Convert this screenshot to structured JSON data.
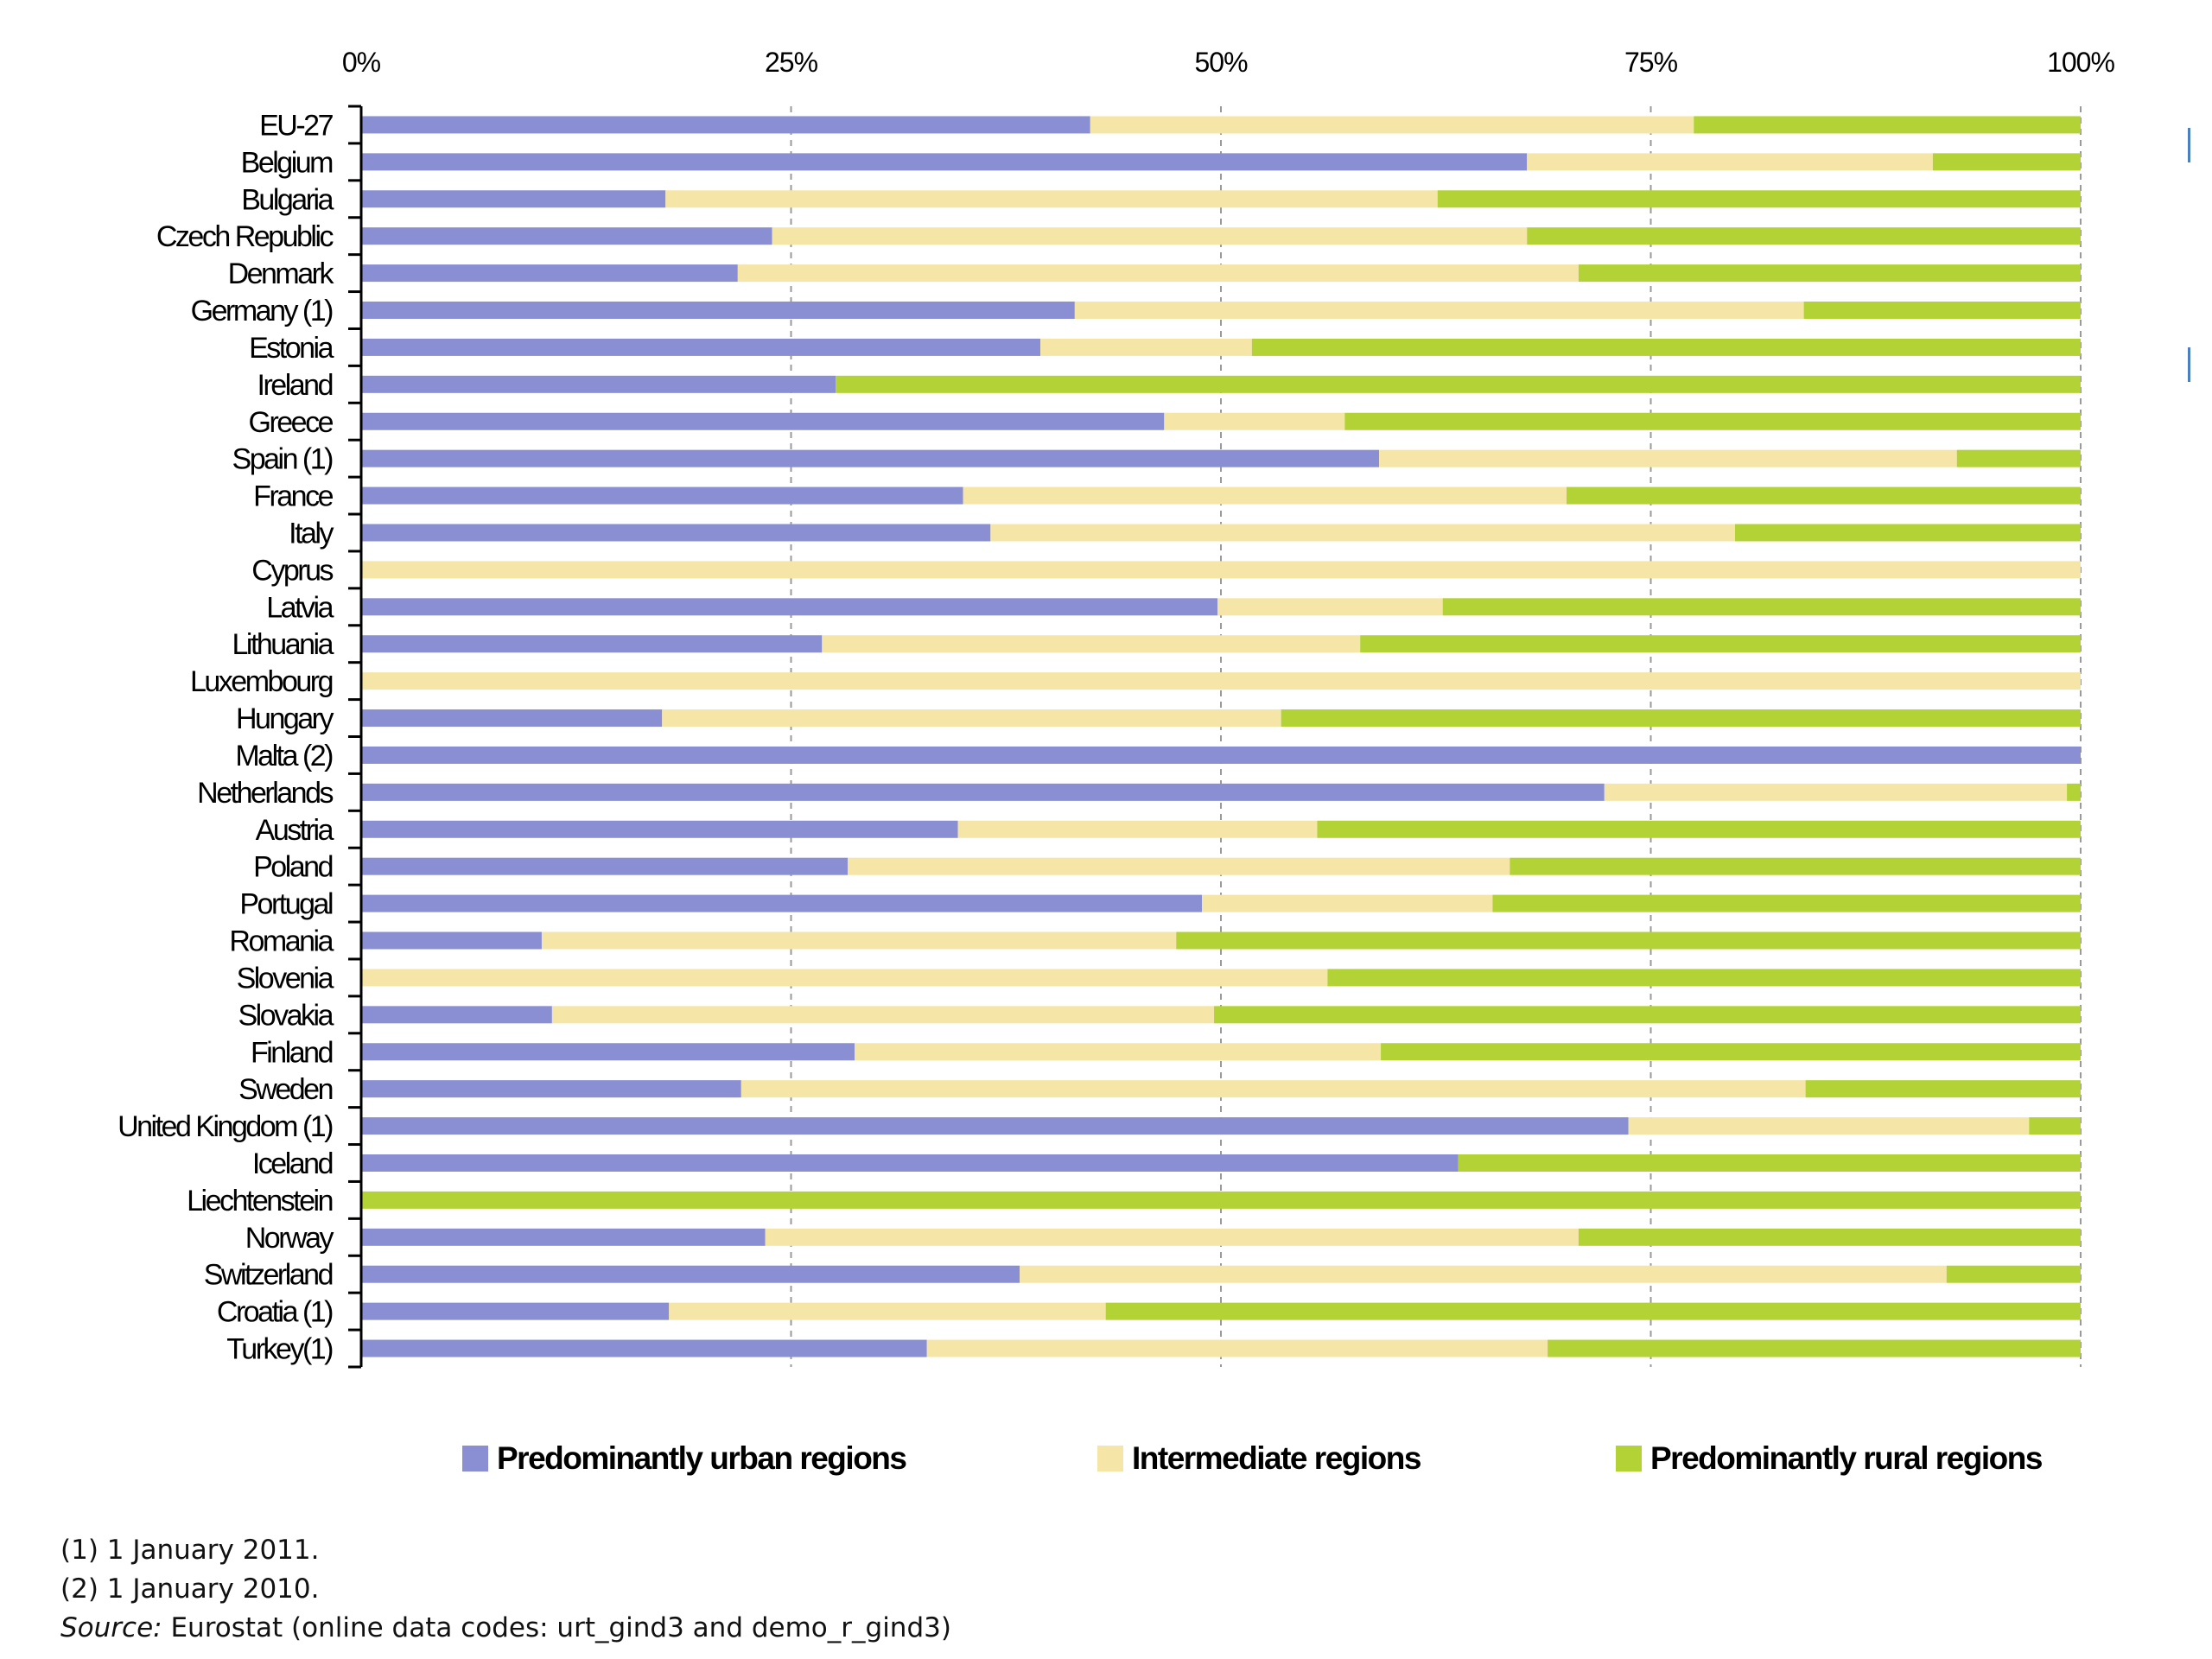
{
  "chart_data": {
    "type": "bar",
    "orientation": "horizontal",
    "stacked": true,
    "percent": true,
    "title": "",
    "xlabel": "",
    "ylabel": "",
    "xlim": [
      0,
      100
    ],
    "x_ticks": [
      "0%",
      "25%",
      "50%",
      "75%",
      "100%"
    ],
    "grid": true,
    "legend_position": "bottom",
    "categories": [
      "EU-27",
      "Belgium",
      "Bulgaria",
      "Czech Republic",
      "Denmark",
      "Germany (1)",
      "Estonia",
      "Ireland",
      "Greece",
      "Spain (1)",
      "France",
      "Italy",
      "Cyprus",
      "Latvia",
      "Lithuania",
      "Luxembourg",
      "Hungary",
      "Malta (2)",
      "Netherlands",
      "Austria",
      "Poland",
      "Portugal",
      "Romania",
      "Slovenia",
      "Slovakia",
      "Finland",
      "Sweden",
      "United Kingdom (1)",
      "Iceland",
      "Liechtenstein",
      "Norway",
      "Switzerland",
      "Croatia (1)",
      "Turkey(1)"
    ],
    "series": [
      {
        "name": "Predominantly urban regions",
        "color": "#8a8fd4",
        "values": [
          42.4,
          67.8,
          17.7,
          23.9,
          21.9,
          41.5,
          39.5,
          27.6,
          46.7,
          59.2,
          35.0,
          36.6,
          0,
          49.8,
          26.8,
          0,
          17.5,
          100,
          72.3,
          34.7,
          28.3,
          48.9,
          10.5,
          0,
          11.1,
          28.7,
          22.1,
          73.7,
          63.8,
          0,
          23.5,
          38.3,
          17.9,
          32.9
        ]
      },
      {
        "name": "Intermediate regions",
        "color": "#f5e6a8",
        "values": [
          35.1,
          23.6,
          44.9,
          43.9,
          48.9,
          42.4,
          12.3,
          0,
          10.5,
          33.6,
          35.1,
          43.3,
          100,
          13.1,
          31.3,
          100,
          36.0,
          0,
          26.9,
          20.9,
          38.5,
          16.9,
          36.9,
          56.2,
          38.5,
          30.6,
          61.9,
          23.3,
          0,
          0,
          47.3,
          53.9,
          25.4,
          36.1
        ]
      },
      {
        "name": "Predominantly rural regions",
        "color": "#b2d235",
        "values": [
          22.5,
          8.6,
          37.4,
          32.2,
          29.2,
          16.1,
          48.2,
          72.4,
          42.8,
          7.2,
          29.9,
          20.1,
          0,
          37.1,
          41.9,
          0,
          46.5,
          0,
          0.8,
          44.4,
          33.2,
          34.2,
          52.6,
          43.8,
          50.4,
          40.7,
          16.0,
          3.0,
          36.2,
          100,
          29.2,
          7.8,
          56.7,
          31.0
        ]
      }
    ]
  },
  "notes": {
    "note1": "(1) 1 January 2011.",
    "note2": "(2) 1 January 2010.",
    "source_label": "Source:",
    "source_text": " Eurostat (online data codes: urt_gind3 and demo_r_gind3)"
  }
}
